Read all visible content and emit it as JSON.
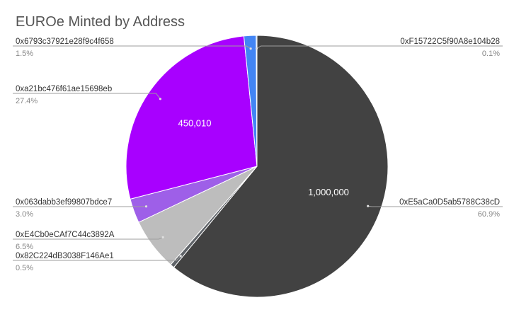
{
  "chart_data": {
    "type": "pie",
    "title": "EUROe Minted by Address",
    "slices": [
      {
        "label": "0xE5aCa0D5ab5788C38cD",
        "percent": "60.9%",
        "value": 1000000,
        "value_label": "1,000,000",
        "color": "#424242"
      },
      {
        "label": "0x82C224dB3038F146Ae1",
        "percent": "0.5%",
        "value": 8210,
        "value_label": "",
        "color": "#5f6368"
      },
      {
        "label": "0xE4Cb0eCAf7C44c3892A",
        "percent": "6.5%",
        "value": 106740,
        "value_label": "",
        "color": "#bdbdbd"
      },
      {
        "label": "0x063dabb3ef99807bdce7",
        "percent": "3.0%",
        "value": 49270,
        "value_label": "",
        "color": "#9e5fe8"
      },
      {
        "label": "0xa21bc476f61ae15698eb",
        "percent": "27.4%",
        "value": 450010,
        "value_label": "450,010",
        "color": "#a800ff"
      },
      {
        "label": "0x6793c37921e28f9c4f658",
        "percent": "1.5%",
        "value": 24630,
        "value_label": "",
        "color": "#4285f4"
      },
      {
        "label": "0xF15722C5f90A8e104b28",
        "percent": "0.1%",
        "value": 1640,
        "value_label": "",
        "color": "#1a73e8"
      }
    ]
  }
}
